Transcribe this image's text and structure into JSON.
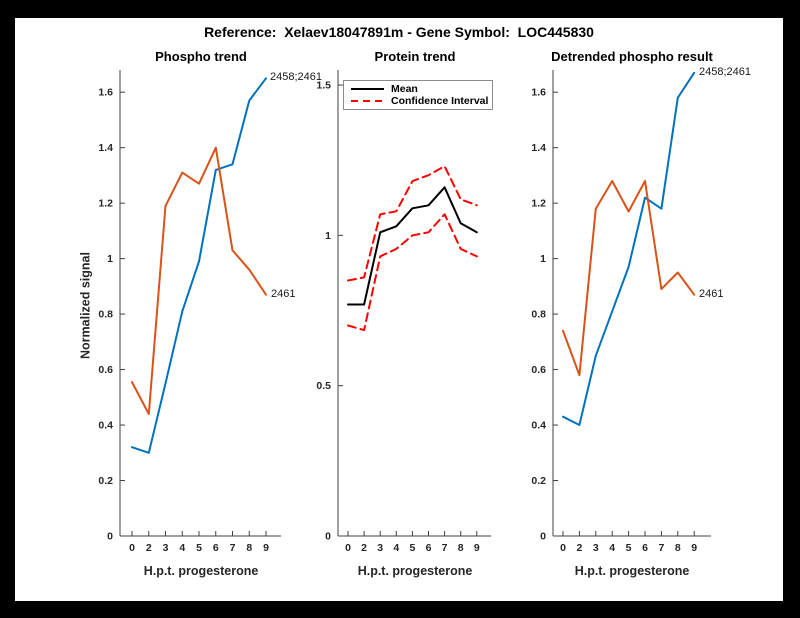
{
  "figure": {
    "title": "Reference:  Xelaev18047891m - Gene Symbol:  LOC445830"
  },
  "colors": {
    "background": "#FFFFFF",
    "frame": "#000000",
    "blue_series": "#0072BD",
    "orange_series": "#D95319",
    "mean_line": "#000000",
    "confidence_interval": "#FF0000",
    "axis": "#404040",
    "tick_text": "#262626"
  },
  "chart_data": [
    {
      "type": "line",
      "title": "Phospho trend",
      "xlabel": "H.p.t. progesterone",
      "ylabel": "Normalized signal",
      "categories": [
        "0",
        "2",
        "3",
        "4",
        "5",
        "6",
        "7",
        "8",
        "9"
      ],
      "ylim": [
        0,
        1.68
      ],
      "yticks": [
        0,
        0.2,
        0.4,
        0.6,
        0.8,
        1,
        1.2,
        1.4,
        1.6
      ],
      "grid": false,
      "legend": null,
      "series": [
        {
          "name": "2458;2461",
          "color": "#0072BD",
          "dash": "solid",
          "end_label": "2458;2461",
          "values": [
            0.32,
            0.3,
            0.55,
            0.81,
            0.99,
            1.32,
            1.34,
            1.57,
            1.65
          ]
        },
        {
          "name": "2461",
          "color": "#D95319",
          "dash": "solid",
          "end_label": "2461",
          "values": [
            0.555,
            0.44,
            1.19,
            1.31,
            1.27,
            1.4,
            1.03,
            0.96,
            0.87
          ]
        }
      ]
    },
    {
      "type": "line",
      "title": "Protein trend",
      "xlabel": "H.p.t. progesterone",
      "ylabel": "",
      "categories": [
        "0",
        "2",
        "3",
        "4",
        "5",
        "6",
        "7",
        "8",
        "9"
      ],
      "ylim": [
        0,
        1.55
      ],
      "yticks": [
        0,
        0.5,
        1,
        1.5
      ],
      "grid": false,
      "legend": {
        "position": "top-left",
        "entries": [
          "Mean",
          "Confidence Interval"
        ]
      },
      "series": [
        {
          "name": "Mean",
          "color": "#000000",
          "dash": "solid",
          "end_label": "",
          "values": [
            0.77,
            0.77,
            1.01,
            1.03,
            1.09,
            1.1,
            1.16,
            1.04,
            1.01
          ]
        },
        {
          "name": "Confidence Interval upper",
          "color": "#FF0000",
          "dash": "dashed",
          "end_label": "",
          "values": [
            0.85,
            0.86,
            1.07,
            1.08,
            1.18,
            1.2,
            1.23,
            1.12,
            1.1
          ]
        },
        {
          "name": "Confidence Interval lower",
          "color": "#FF0000",
          "dash": "dashed",
          "end_label": "",
          "values": [
            0.7,
            0.685,
            0.93,
            0.955,
            1.0,
            1.01,
            1.07,
            0.955,
            0.93
          ]
        }
      ]
    },
    {
      "type": "line",
      "title": "Detrended phospho result",
      "xlabel": "H.p.t. progesterone",
      "ylabel": "",
      "categories": [
        "0",
        "2",
        "3",
        "4",
        "5",
        "6",
        "7",
        "8",
        "9"
      ],
      "ylim": [
        0,
        1.68
      ],
      "yticks": [
        0,
        0.2,
        0.4,
        0.6,
        0.8,
        1,
        1.2,
        1.4,
        1.6
      ],
      "grid": false,
      "legend": null,
      "series": [
        {
          "name": "2458;2461",
          "color": "#0072BD",
          "dash": "solid",
          "end_label": "2458;2461",
          "values": [
            0.43,
            0.4,
            0.65,
            0.81,
            0.97,
            1.22,
            1.18,
            1.58,
            1.67
          ]
        },
        {
          "name": "2461",
          "color": "#D95319",
          "dash": "solid",
          "end_label": "2461",
          "values": [
            0.74,
            0.58,
            1.18,
            1.28,
            1.17,
            1.28,
            0.89,
            0.95,
            0.87
          ]
        }
      ]
    }
  ]
}
